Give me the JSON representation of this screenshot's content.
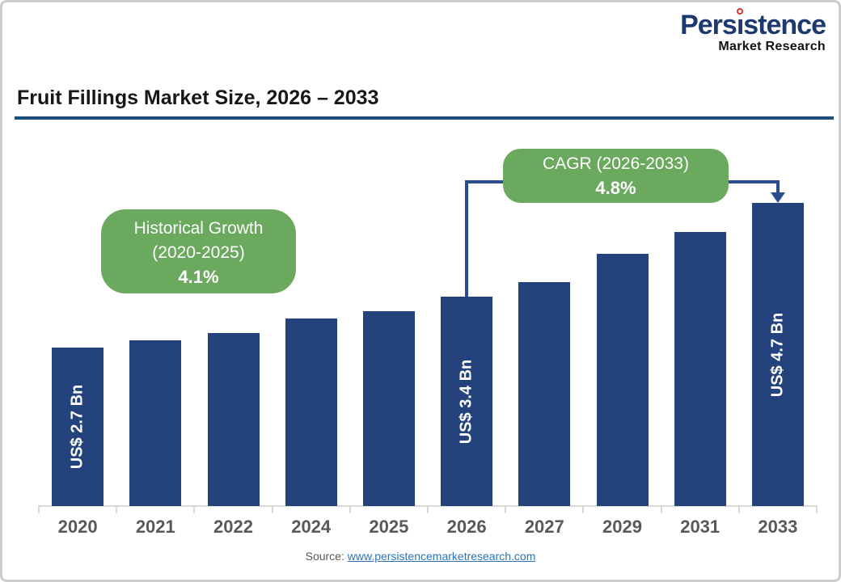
{
  "brand": {
    "name_pre": "Pers",
    "name_i": "ı",
    "name_post": "stence",
    "tagline": "Market Research",
    "navy": "#1d3a70",
    "red": "#d6362f"
  },
  "header": {
    "title": "Fruit Fillings Market Size, 2026 – 2033",
    "rule_color": "#1f4e79"
  },
  "callouts": {
    "historical": {
      "line1": "Historical Growth",
      "line2": "(2020-2025)",
      "value": "4.1%"
    },
    "cagr": {
      "line1": "CAGR (2026-2033)",
      "value": "4.8%"
    }
  },
  "chart_data": {
    "type": "bar",
    "title": "Fruit Fillings Market Size, 2026 – 2033",
    "unit": "US$ Bn",
    "categories": [
      "2020",
      "2021",
      "2022",
      "2024",
      "2025",
      "2026",
      "2027",
      "2029",
      "2031",
      "2033"
    ],
    "values": [
      2.7,
      2.8,
      2.9,
      3.1,
      3.2,
      3.4,
      3.6,
      4.0,
      4.3,
      4.7
    ],
    "labeled_points": [
      {
        "category": "2020",
        "label": "US$ 2.7 Bn"
      },
      {
        "category": "2026",
        "label": "US$ 3.4 Bn"
      },
      {
        "category": "2033",
        "label": "US$ 4.7 Bn"
      }
    ],
    "bar_color": "#24437c",
    "bracket_color": "#2a4d8f",
    "axis_color": "#d9d9d9",
    "tick_label_color": "#595959",
    "grid": false,
    "legend": false,
    "xlabel": "",
    "ylabel": ""
  },
  "footer": {
    "source_label": "Source:",
    "source_link": "www.persistencemarketresearch.com"
  }
}
